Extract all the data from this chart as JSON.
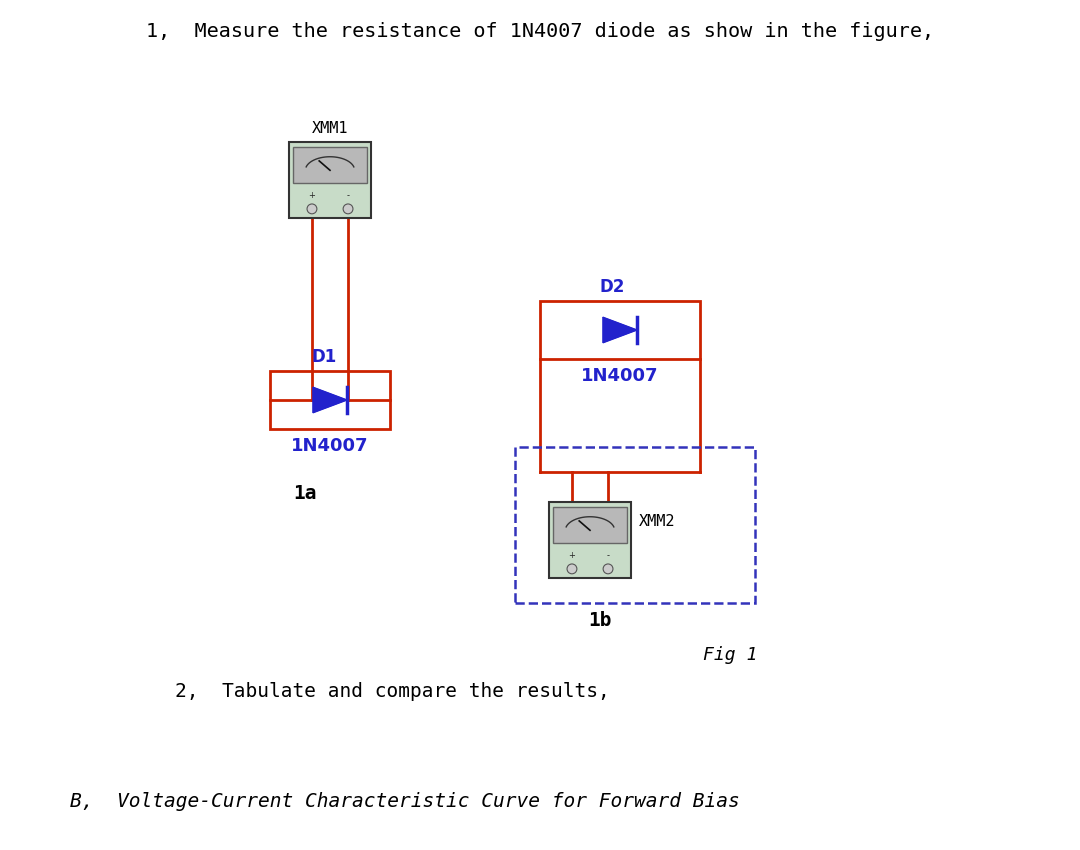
{
  "title_text": "1,  Measure the resistance of 1N4007 diode as show in the figure,",
  "text2": "2,  Tabulate and compare the results,",
  "text_B": "B,  Voltage-Current Characteristic Curve for Forward Bias",
  "fig1_text": "Fig 1",
  "bg_color": "#ffffff",
  "wire_color": "#cc2200",
  "diode_color": "#2222cc",
  "label_color_black": "#000000",
  "dashed_box_color": "#3333bb",
  "diode_rect_color": "#cc2200",
  "meter_fill": "#c8dcc8",
  "meter_border": "#333333",
  "meter_face": "#b0b0b0",
  "meter_inner": "#c0d8c0",
  "xmm1_label": "XMM1",
  "xmm2_label": "XMM2",
  "d1_label": "D1",
  "d2_label": "D2",
  "diode_name1": "1N4007",
  "diode_name2": "1N4007",
  "label_1a": "1a",
  "label_1b": "1b"
}
